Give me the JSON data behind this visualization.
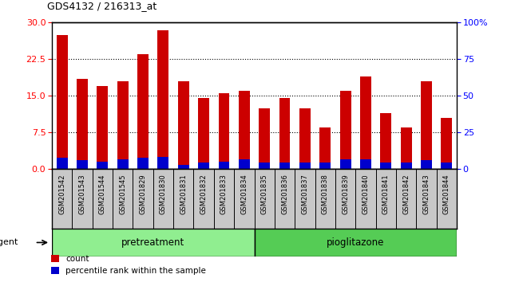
{
  "title": "GDS4132 / 216313_at",
  "samples": [
    "GSM201542",
    "GSM201543",
    "GSM201544",
    "GSM201545",
    "GSM201829",
    "GSM201830",
    "GSM201831",
    "GSM201832",
    "GSM201833",
    "GSM201834",
    "GSM201835",
    "GSM201836",
    "GSM201837",
    "GSM201838",
    "GSM201839",
    "GSM201840",
    "GSM201841",
    "GSM201842",
    "GSM201843",
    "GSM201844"
  ],
  "count_values": [
    27.5,
    18.5,
    17.0,
    18.0,
    23.5,
    28.5,
    18.0,
    14.5,
    15.5,
    16.0,
    12.5,
    14.5,
    12.5,
    8.5,
    16.0,
    19.0,
    11.5,
    8.5,
    18.0,
    10.5
  ],
  "percentile_values": [
    8.0,
    6.0,
    5.0,
    6.5,
    8.0,
    8.5,
    3.0,
    4.5,
    5.0,
    6.5,
    4.5,
    4.5,
    4.5,
    4.5,
    6.5,
    6.5,
    4.5,
    4.5,
    6.0,
    4.5
  ],
  "bar_color": "#cc0000",
  "percentile_color": "#0000cc",
  "ylim_left": [
    0,
    30
  ],
  "ylim_right": [
    0,
    100
  ],
  "yticks_left": [
    0,
    7.5,
    15,
    22.5,
    30
  ],
  "yticks_right": [
    0,
    25,
    50,
    75,
    100
  ],
  "ytick_labels_right": [
    "0",
    "25",
    "50",
    "75",
    "100%"
  ],
  "group_label_pretreatment": "pretreatment",
  "group_label_pioglitazone": "pioglitazone",
  "pretreatment_count": 10,
  "agent_label": "agent",
  "legend_count": "count",
  "legend_percentile": "percentile rank within the sample",
  "xtick_bg_color": "#c8c8c8",
  "group_pre_color": "#90ee90",
  "group_pio_color": "#55cc55",
  "bar_width": 0.55
}
